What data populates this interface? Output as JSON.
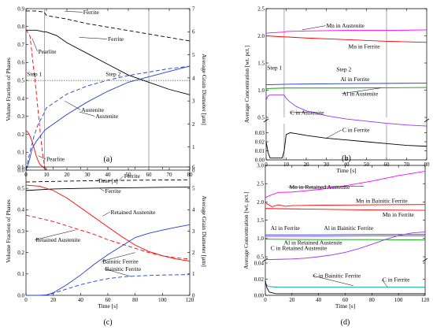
{
  "chart_data": [
    {
      "id": "a",
      "panel_label": "(a)",
      "type": "line",
      "xlabel": "Time [s]",
      "ylabel": "Volume Fraction of Phases",
      "y2label": "Average Grain Diameter [µm]",
      "xlim": [
        0,
        80
      ],
      "ylim": [
        0,
        0.9
      ],
      "y2lim": [
        0,
        7
      ],
      "xticks": [
        0,
        10,
        20,
        30,
        40,
        50,
        60,
        70,
        80
      ],
      "yticks": [
        0.0,
        0.1,
        0.2,
        0.3,
        0.4,
        0.5,
        0.6,
        0.7,
        0.8,
        0.9
      ],
      "y2ticks": [
        0,
        1,
        2,
        3,
        4,
        5,
        6,
        7
      ],
      "vlines": [
        9,
        60
      ],
      "hline_y": 0.5,
      "series": [
        {
          "color": "#000000",
          "dash": "",
          "axis": "y1",
          "x": [
            0,
            5,
            9,
            10,
            15,
            20,
            30,
            40,
            50,
            60,
            70,
            80
          ],
          "y": [
            0.78,
            0.78,
            0.77,
            0.77,
            0.75,
            0.71,
            0.65,
            0.59,
            0.53,
            0.49,
            0.45,
            0.42
          ]
        },
        {
          "color": "#000000",
          "dash": "5,3",
          "axis": "y2",
          "x": [
            0,
            5,
            9,
            10,
            20,
            30,
            40,
            50,
            60,
            70,
            80
          ],
          "y": [
            6.9,
            6.9,
            6.85,
            6.7,
            6.55,
            6.35,
            6.2,
            6.05,
            5.9,
            5.75,
            5.6
          ]
        },
        {
          "color": "#ff0000",
          "dash": "",
          "axis": "y1",
          "x": [
            0,
            1,
            2,
            3,
            4,
            5,
            6,
            7,
            8,
            9,
            10
          ],
          "y": [
            0.22,
            0.21,
            0.19,
            0.16,
            0.12,
            0.08,
            0.05,
            0.03,
            0.02,
            0.01,
            0.0
          ]
        },
        {
          "color": "#ff0000",
          "dash": "5,3",
          "axis": "y2",
          "x": [
            0,
            2,
            3,
            4,
            5,
            6,
            7,
            8,
            9,
            9.5
          ],
          "y": [
            6.1,
            5.8,
            5.0,
            4.2,
            3.4,
            2.5,
            1.6,
            0.8,
            0.2,
            0.0
          ]
        },
        {
          "color": "#1f3fd1",
          "dash": "",
          "axis": "y1",
          "x": [
            0,
            1,
            2,
            3,
            5,
            7,
            9,
            10,
            15,
            20,
            30,
            40,
            50,
            60,
            70,
            80
          ],
          "y": [
            0.0,
            0.03,
            0.07,
            0.12,
            0.16,
            0.19,
            0.22,
            0.23,
            0.27,
            0.31,
            0.38,
            0.44,
            0.49,
            0.52,
            0.55,
            0.58
          ]
        },
        {
          "color": "#1f3fd1",
          "dash": "5,3",
          "axis": "y2",
          "x": [
            0,
            2,
            4,
            6,
            9,
            10,
            15,
            20,
            30,
            40,
            50,
            60,
            70,
            80
          ],
          "y": [
            0.0,
            0.8,
            1.5,
            2.0,
            2.5,
            2.7,
            3.0,
            3.3,
            3.65,
            3.9,
            4.1,
            4.25,
            4.4,
            4.5
          ]
        }
      ],
      "annotations": [
        {
          "text": "Ferrite",
          "x": 28,
          "y": 0.87,
          "tx": 19,
          "ty": 0.885
        },
        {
          "text": "Pearlite",
          "x": 6,
          "y": 0.65,
          "tx": 3,
          "ty": 0.735
        },
        {
          "text": "Ferrite",
          "x": 40,
          "y": 0.72,
          "tx": 26,
          "ty": 0.74
        },
        {
          "text": "Step 1",
          "x": 0.5,
          "y": 0.525
        },
        {
          "text": "Step 2",
          "x": 39,
          "y": 0.525
        },
        {
          "text": "Austenite",
          "x": 27,
          "y": 0.325,
          "tx": 19,
          "ty": 0.385
        },
        {
          "text": "Austenite",
          "x": 34,
          "y": 0.29,
          "tx": 26,
          "ty": 0.325
        },
        {
          "text": "Pearlite",
          "x": 10,
          "y": 0.05,
          "tx": 6,
          "ty": 0.08
        }
      ]
    },
    {
      "id": "b",
      "panel_label": "(b)",
      "type": "line",
      "xlabel": "Time [s]",
      "ylabel": "Average Concentration [wt. pct.]",
      "xlim": [
        0,
        80
      ],
      "xticks": [
        0,
        10,
        20,
        30,
        40,
        50,
        60,
        70,
        80
      ],
      "upper_ylim": [
        0.5,
        2.5
      ],
      "upper_yticks": [
        0.5,
        1.0,
        1.5,
        2.0,
        2.5
      ],
      "lower_ylim": [
        0.0,
        0.04
      ],
      "lower_yticks": [
        0.0,
        0.01,
        0.02,
        0.03
      ],
      "vlines": [
        9,
        60
      ],
      "series": [
        {
          "name": "Mn in Austenite",
          "color": "#ff00ff",
          "panel": "upper",
          "x": [
            0,
            5,
            9,
            10,
            20,
            40,
            60,
            80
          ],
          "y": [
            2.05,
            2.06,
            2.07,
            2.08,
            2.09,
            2.1,
            2.1,
            2.11
          ]
        },
        {
          "name": "Mn in Ferrite",
          "color": "#ff0000",
          "panel": "upper",
          "x": [
            0,
            9,
            10,
            20,
            40,
            60,
            80
          ],
          "y": [
            2.0,
            1.98,
            1.98,
            1.96,
            1.93,
            1.9,
            1.88
          ]
        },
        {
          "name": "Al in Ferrite",
          "color": "#1f3fd1",
          "panel": "upper",
          "x": [
            0,
            10,
            40,
            80
          ],
          "y": [
            1.1,
            1.11,
            1.12,
            1.13
          ]
        },
        {
          "name": "Al in Austenite",
          "color": "#00a000",
          "panel": "upper",
          "x": [
            0,
            10,
            40,
            80
          ],
          "y": [
            1.03,
            1.04,
            1.04,
            1.05
          ]
        },
        {
          "name": "C in Austenite",
          "color": "#9b30ff",
          "panel": "upper",
          "x": [
            0,
            1,
            2,
            9,
            10,
            12,
            15,
            20,
            30,
            40,
            50,
            60,
            70,
            80
          ],
          "y": [
            0.82,
            0.9,
            0.91,
            0.91,
            0.85,
            0.78,
            0.7,
            0.62,
            0.53,
            0.47,
            0.43,
            0.39,
            0.36,
            0.34
          ]
        },
        {
          "name": "C in Ferrite",
          "color": "#000000",
          "panel": "lower",
          "x": [
            0,
            1,
            2,
            8,
            9,
            10,
            12,
            15,
            20,
            30,
            40,
            50,
            60,
            70,
            80
          ],
          "y": [
            0.02,
            0.008,
            0.002,
            0.002,
            0.01,
            0.028,
            0.03,
            0.029,
            0.027,
            0.024,
            0.022,
            0.02,
            0.018,
            0.016,
            0.015
          ]
        }
      ],
      "annotations": [
        {
          "text": "Mn in Austenite",
          "x": 30,
          "y": 2.15,
          "tx": 18,
          "ty": 2.11
        },
        {
          "text": "Mn in Ferrite",
          "x": 41,
          "y": 1.77
        },
        {
          "text": "Step 1",
          "x": 0.5,
          "y": 1.38
        },
        {
          "text": "Step 2",
          "x": 35,
          "y": 1.35
        },
        {
          "text": "Al in Ferrite",
          "x": 37,
          "y": 1.17
        },
        {
          "text": "Al in Austenite",
          "x": 38,
          "y": 0.9,
          "tx": 57,
          "ty": 1.04
        },
        {
          "text": "C in Austenite",
          "x": 12,
          "y": 0.55,
          "tx": 21,
          "ty": 0.6
        },
        {
          "text": "C in Ferrite",
          "x": 38,
          "y": 0.031,
          "tx": 30,
          "ty": 0.024
        }
      ]
    },
    {
      "id": "c",
      "panel_label": "(c)",
      "type": "line",
      "xlabel": "Time [s]",
      "ylabel": "Volume Fraction of Phases",
      "y2label": "Average Grain Diameter [µm]",
      "xlim": [
        0,
        120
      ],
      "ylim": [
        0,
        0.6
      ],
      "y2lim": [
        0,
        6
      ],
      "xticks": [
        0,
        20,
        40,
        60,
        80,
        100,
        120
      ],
      "yticks": [
        0.0,
        0.1,
        0.2,
        0.3,
        0.4,
        0.5,
        0.6
      ],
      "y2ticks": [
        0,
        1,
        2,
        3,
        4,
        5,
        6
      ],
      "series": [
        {
          "color": "#000000",
          "dash": "5,3",
          "axis": "y2",
          "x": [
            0,
            40,
            80,
            120
          ],
          "y": [
            5.3,
            5.35,
            5.38,
            5.4
          ]
        },
        {
          "color": "#000000",
          "dash": "",
          "axis": "y1",
          "x": [
            0,
            20,
            40,
            60,
            80,
            100,
            120
          ],
          "y": [
            0.49,
            0.497,
            0.5,
            0.502,
            0.503,
            0.505,
            0.506
          ]
        },
        {
          "color": "#ff0000",
          "dash": "",
          "axis": "y1",
          "x": [
            0,
            10,
            20,
            30,
            40,
            50,
            60,
            70,
            80,
            90,
            100,
            110,
            120
          ],
          "y": [
            0.515,
            0.51,
            0.49,
            0.455,
            0.41,
            0.365,
            0.32,
            0.275,
            0.235,
            0.205,
            0.185,
            0.17,
            0.16
          ]
        },
        {
          "color": "#ff0000",
          "dash": "5,3",
          "axis": "y2",
          "x": [
            0,
            10,
            20,
            30,
            40,
            50,
            60,
            70,
            80,
            90,
            100,
            110,
            120
          ],
          "y": [
            3.75,
            3.6,
            3.45,
            3.25,
            3.05,
            2.85,
            2.6,
            2.4,
            2.2,
            2.0,
            1.85,
            1.75,
            1.7
          ]
        },
        {
          "color": "#1f3fd1",
          "dash": "",
          "axis": "y1",
          "x": [
            0,
            10,
            15,
            20,
            30,
            40,
            50,
            60,
            70,
            80,
            90,
            100,
            110,
            120
          ],
          "y": [
            0.0,
            0.0,
            0.002,
            0.012,
            0.05,
            0.095,
            0.145,
            0.19,
            0.23,
            0.27,
            0.29,
            0.305,
            0.318,
            0.33
          ]
        },
        {
          "color": "#1f3fd1",
          "dash": "5,3",
          "axis": "y2",
          "x": [
            0,
            15,
            20,
            30,
            40,
            50,
            60,
            70,
            80,
            90,
            100,
            110,
            120
          ],
          "y": [
            0.0,
            0.0,
            0.1,
            0.3,
            0.5,
            0.65,
            0.78,
            0.86,
            0.9,
            0.93,
            0.95,
            0.96,
            0.97
          ]
        }
      ],
      "annotations": [
        {
          "text": "Ferrite",
          "x": 72,
          "y": 0.548,
          "tx": 68,
          "ty": 0.536
        },
        {
          "text": "Ferrite",
          "x": 58,
          "y": 0.478,
          "tx": 54,
          "ty": 0.5
        },
        {
          "text": "Retained Austenite",
          "x": 62,
          "y": 0.38,
          "tx": 56,
          "ty": 0.37
        },
        {
          "text": "Retained Austenite",
          "x": 7,
          "y": 0.25,
          "tx": 36,
          "ty": 0.305
        },
        {
          "text": "Bainitic Ferrite",
          "x": 56,
          "y": 0.15,
          "tx": 80,
          "ty": 0.2
        },
        {
          "text": "Bainitic Ferrite",
          "x": 58,
          "y": 0.115,
          "tx": 77,
          "ty": 0.088
        }
      ]
    },
    {
      "id": "d",
      "panel_label": "(d)",
      "type": "line",
      "xlabel": "Time [s]",
      "ylabel": "Average Concentration [wt. pct.]",
      "xlim": [
        0,
        120
      ],
      "xticks": [
        0,
        20,
        40,
        60,
        80,
        100,
        120
      ],
      "upper_ylim": [
        0.5,
        3.0
      ],
      "upper_yticks": [
        0.5,
        1.0,
        1.5,
        2.0,
        2.5,
        3.0
      ],
      "lower_ylim": [
        0.0,
        0.04
      ],
      "lower_yticks": [
        0.0,
        0.02,
        0.04
      ],
      "series": [
        {
          "name": "Mn in Retained Austenite",
          "color": "#ff00ff",
          "panel": "upper",
          "x": [
            0,
            5,
            10,
            20,
            40,
            60,
            80,
            100,
            120
          ],
          "y": [
            2.12,
            2.2,
            2.26,
            2.27,
            2.34,
            2.44,
            2.57,
            2.72,
            2.84
          ]
        },
        {
          "name": "Mn in Bainitic Ferrite",
          "color": "#ff0000",
          "panel": "upper",
          "x": [
            0,
            5,
            10,
            15,
            20,
            40,
            80,
            120
          ],
          "y": [
            1.98,
            1.87,
            1.92,
            1.88,
            1.9,
            1.91,
            1.92,
            1.93
          ]
        },
        {
          "name": "Mn in Ferrite",
          "color": "#ff0000",
          "panel": "upper",
          "x": [
            0,
            40,
            80,
            120
          ],
          "y": [
            1.82,
            1.8,
            1.78,
            1.77
          ]
        },
        {
          "name": "Al in Ferrite",
          "color": "#1f3fd1",
          "panel": "upper",
          "x": [
            0,
            40,
            80,
            120
          ],
          "y": [
            1.1,
            1.1,
            1.11,
            1.11
          ]
        },
        {
          "name": "Al in Bainitic Ferrite",
          "color": "#9b30ff",
          "panel": "upper",
          "x": [
            0,
            40,
            80,
            120
          ],
          "y": [
            1.06,
            1.06,
            1.07,
            1.07
          ]
        },
        {
          "name": "Al in Retained Austenite",
          "color": "#00a000",
          "panel": "upper",
          "x": [
            0,
            40,
            80,
            120
          ],
          "y": [
            0.98,
            0.97,
            0.97,
            0.96
          ]
        },
        {
          "name": "C in Retained Austenite",
          "color": "#9b30ff",
          "panel": "upper",
          "x": [
            0,
            10,
            20,
            30,
            40,
            50,
            60,
            70,
            80,
            90,
            100,
            110,
            120
          ],
          "y": [
            0.42,
            0.43,
            0.44,
            0.46,
            0.5,
            0.55,
            0.62,
            0.72,
            0.84,
            0.97,
            1.08,
            1.15,
            1.18
          ]
        },
        {
          "name": "C in Bainitic Ferrite",
          "color": "#00a0a0",
          "panel": "lower",
          "x": [
            0,
            2,
            10,
            120
          ],
          "y": [
            0.015,
            0.011,
            0.01,
            0.01
          ]
        },
        {
          "name": "C in Ferrite",
          "color": "#000000",
          "panel": "lower",
          "x": [
            0,
            1,
            3,
            8,
            120
          ],
          "y": [
            0.018,
            0.01,
            0.004,
            0.002,
            0.002
          ]
        }
      ],
      "annotations": [
        {
          "text": "Mn in Retained Austenite",
          "x": 18,
          "y": 2.35,
          "tx": 74,
          "ty": 2.43
        },
        {
          "text": "Mn in Bainitic Ferrite",
          "x": 68,
          "y": 1.98
        },
        {
          "text": "Mn in Ferrite",
          "x": 88,
          "y": 1.6
        },
        {
          "text": "Al in Ferrite",
          "x": 4,
          "y": 1.23
        },
        {
          "text": "Al in Bainitic Ferrite",
          "x": 44,
          "y": 1.23
        },
        {
          "text": "Al in Retained Austenite",
          "x": 14,
          "y": 0.83
        },
        {
          "text": "C in Retained Austenite",
          "x": 4,
          "y": 0.68
        },
        {
          "text": "C in Bainitic Ferrite",
          "x": 36,
          "y": 0.022,
          "tx": 66,
          "ty": 0.012
        },
        {
          "text": "C in Ferrite",
          "x": 88,
          "y": 0.017,
          "tx": 92,
          "ty": 0.01
        }
      ]
    }
  ]
}
